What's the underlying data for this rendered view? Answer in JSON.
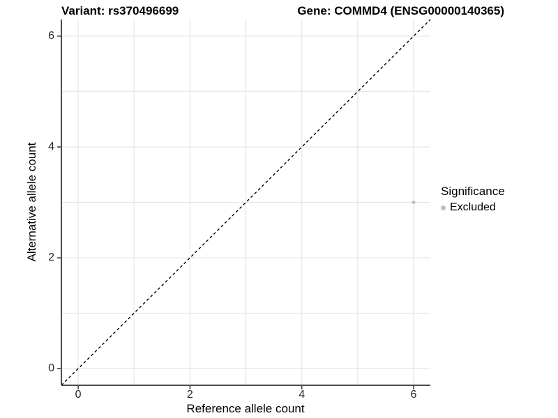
{
  "legend": {
    "title": "Significance",
    "items": [
      {
        "label": "Excluded",
        "color": "#bebebe"
      }
    ]
  },
  "chart_data": {
    "type": "scatter",
    "title_left": "Variant: rs370496699",
    "title_right": "Gene: COMMD4 (ENSG00000140365)",
    "xlabel": "Reference allele count",
    "ylabel": "Alternative allele count",
    "xlim": [
      -0.3,
      6.3
    ],
    "ylim": [
      -0.3,
      6.3
    ],
    "x_ticks": [
      0,
      2,
      4,
      6
    ],
    "y_ticks": [
      0,
      2,
      4,
      6
    ],
    "grid": true,
    "gridline_interval": 1,
    "legend_position": "right",
    "series": [
      {
        "name": "Excluded",
        "color": "#bebebe",
        "points": [
          {
            "x": 6,
            "y": 3
          }
        ]
      }
    ],
    "reference_line": {
      "type": "identity",
      "style": "dashed",
      "color": "#000000"
    },
    "colors": {
      "grid": "#e6e6e6",
      "axis_line": "#4d4d4d",
      "tick_mark": "#333333",
      "text": "#000000"
    }
  }
}
